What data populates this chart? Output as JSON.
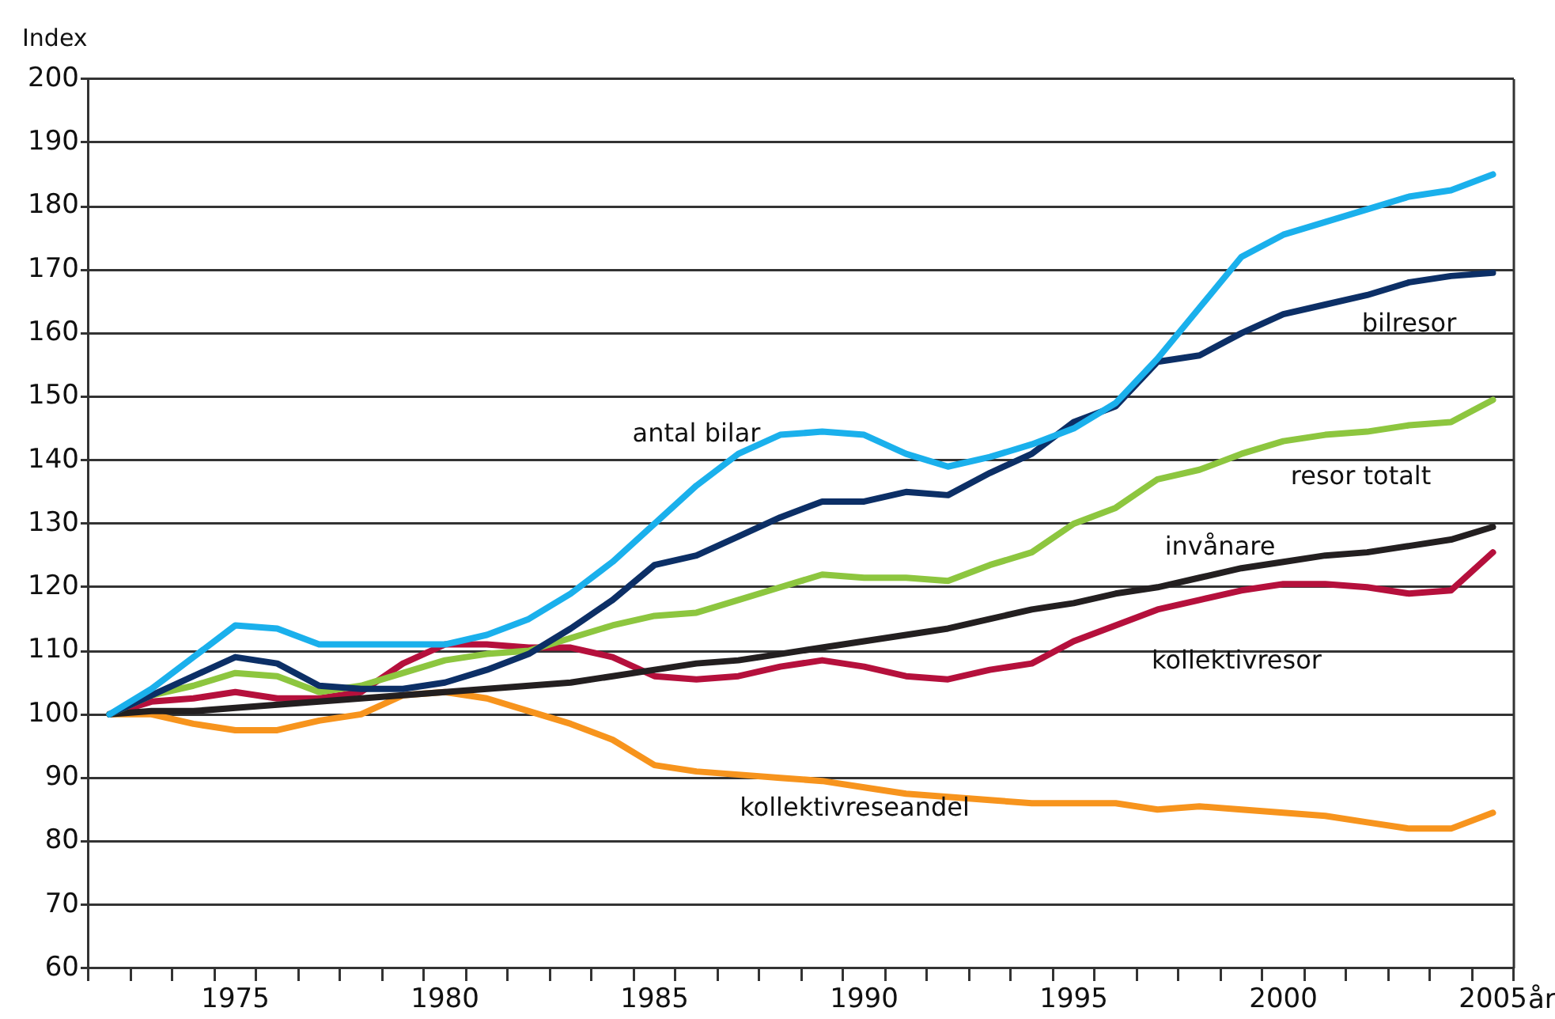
{
  "chart_data": {
    "type": "line",
    "ylabel": "Index",
    "xlabel": "år",
    "categories": [
      null,
      null,
      null,
      "1975",
      null,
      null,
      null,
      null,
      "1980",
      null,
      null,
      null,
      null,
      "1985",
      null,
      null,
      null,
      null,
      "1990",
      null,
      null,
      null,
      null,
      "1995",
      null,
      null,
      null,
      null,
      "2000",
      null,
      null,
      null,
      null,
      "2005"
    ],
    "ylim": [
      60,
      200
    ],
    "yticks": [
      60,
      70,
      80,
      90,
      100,
      110,
      120,
      130,
      140,
      150,
      160,
      170,
      180,
      190,
      200
    ],
    "grid": "y",
    "legend": false,
    "marker": "none",
    "line_style": "solid",
    "series": [
      {
        "name": "antal bilar",
        "color": "#1ab0ec",
        "values": [
          100,
          104,
          109,
          114,
          113.5,
          111,
          111,
          111,
          111,
          112.5,
          115,
          119,
          124,
          130,
          136,
          141,
          144,
          144.5,
          144,
          141,
          139,
          140.5,
          142.5,
          145,
          149,
          156,
          164,
          172,
          175.5,
          177.5,
          179.5,
          181.5,
          182.5,
          185
        ]
      },
      {
        "name": "bilresor",
        "color": "#0c2f66",
        "values": [
          100,
          103,
          106,
          109,
          108,
          104.5,
          104,
          104,
          105,
          107,
          109.5,
          113.5,
          118,
          123.5,
          125,
          128,
          131,
          133.5,
          133.5,
          135,
          134.5,
          138,
          141,
          146,
          148.5,
          155.5,
          156.5,
          160,
          163,
          164.5,
          166,
          168,
          169,
          169.5
        ]
      },
      {
        "name": "resor totalt",
        "color": "#8dc63f",
        "values": [
          100,
          103,
          104.5,
          106.5,
          106,
          103.5,
          104.5,
          106.5,
          108.5,
          109.5,
          110,
          112,
          114,
          115.5,
          116,
          118,
          120,
          122,
          121.5,
          121.5,
          121,
          123.5,
          125.5,
          130,
          132.5,
          137,
          138.5,
          141,
          143,
          144,
          144.5,
          145.5,
          146,
          149.5
        ]
      },
      {
        "name": "invånare",
        "color": "#231f20",
        "values": [
          100,
          100.5,
          100.5,
          101,
          101.5,
          102,
          102.5,
          103,
          103.5,
          104,
          104.5,
          105,
          106,
          107,
          108,
          108.5,
          109.5,
          110.5,
          111.5,
          112.5,
          113.5,
          115,
          116.5,
          117.5,
          119,
          120,
          121.5,
          123,
          124,
          125,
          125.5,
          126.5,
          127.5,
          129.5
        ]
      },
      {
        "name": "kollektivresor",
        "color": "#b5103c",
        "values": [
          100,
          102,
          102.5,
          103.5,
          102.5,
          102.5,
          103.5,
          108,
          111,
          111,
          110.5,
          110.5,
          109,
          106,
          105.5,
          106,
          107.5,
          108.5,
          107.5,
          106,
          105.5,
          107,
          108,
          111.5,
          114,
          116.5,
          118,
          119.5,
          120.5,
          120.5,
          120,
          119,
          119.5,
          125.5
        ]
      },
      {
        "name": "kollektivreseandel",
        "color": "#f7941d",
        "values": [
          100,
          100,
          98.5,
          97.5,
          97.5,
          99,
          100,
          103,
          103.5,
          102.5,
          100.5,
          98.5,
          96,
          92,
          91,
          90.5,
          90,
          89.5,
          88.5,
          87.5,
          87,
          86.5,
          86,
          86,
          86,
          85,
          85.5,
          85,
          84.5,
          84,
          83,
          82,
          82,
          84.5
        ]
      }
    ]
  }
}
